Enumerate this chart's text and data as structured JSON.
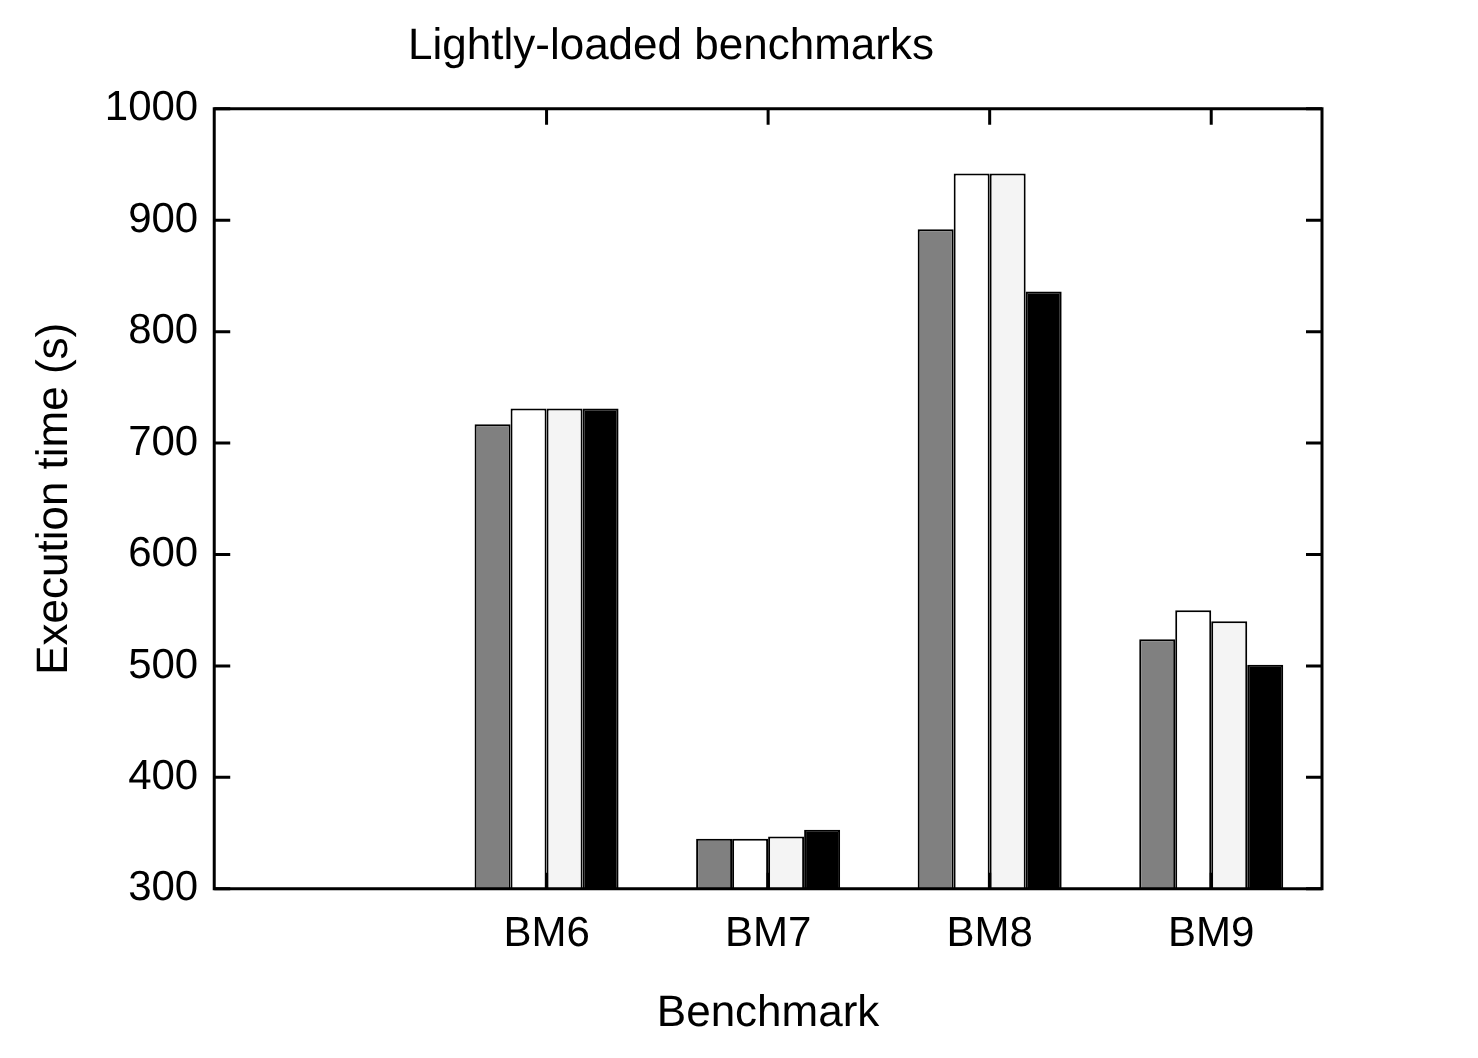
{
  "chart_data": {
    "type": "bar",
    "title": "Lightly-loaded benchmarks",
    "xlabel": "Benchmark",
    "ylabel": "Execution time (s)",
    "categories": [
      null,
      "BM6",
      "BM7",
      "BM8",
      "BM9"
    ],
    "series": [
      {
        "color": "#808080",
        "values": [
          null,
          717,
          345,
          892,
          524
        ]
      },
      {
        "color": "#ffffff",
        "values": [
          null,
          731,
          345,
          942,
          550
        ]
      },
      {
        "color": "#f4f4f4",
        "values": [
          null,
          731,
          347,
          942,
          540
        ]
      },
      {
        "color": "#000000",
        "values": [
          null,
          731,
          353,
          836,
          501
        ]
      }
    ],
    "ylim": [
      300,
      1000
    ],
    "yticks": [
      300,
      400,
      500,
      600,
      700,
      800,
      900,
      1000
    ],
    "grid": false,
    "legend": false
  }
}
